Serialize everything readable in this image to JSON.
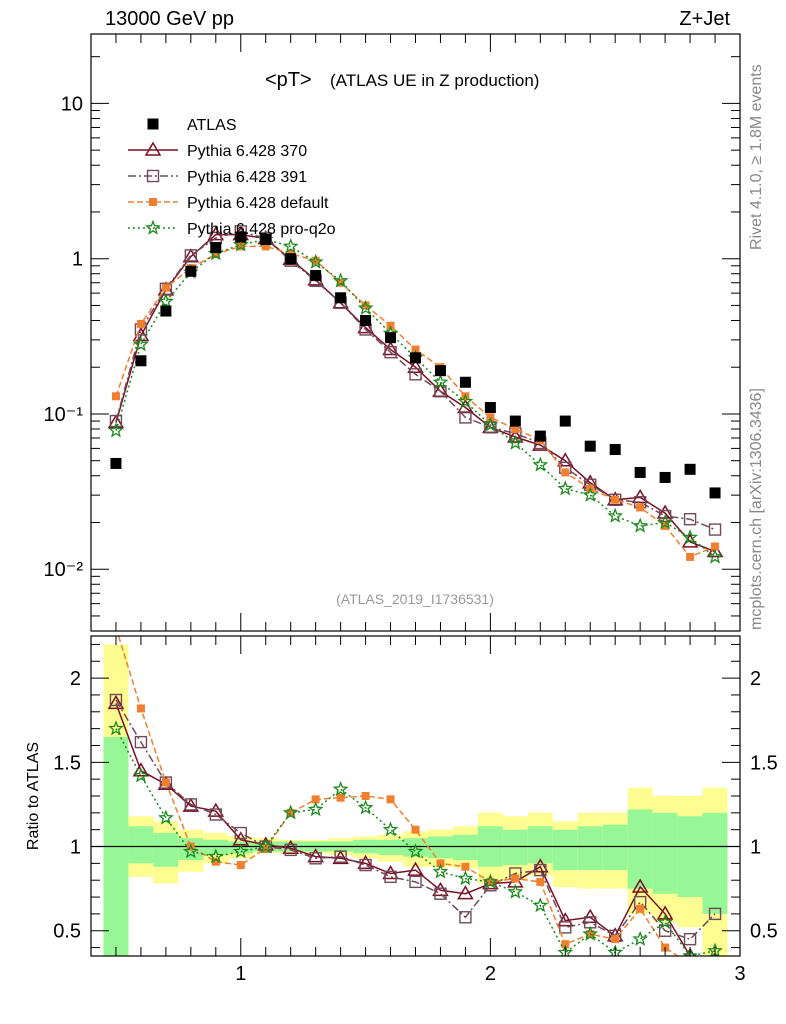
{
  "header": {
    "left": "13000 GeV pp",
    "right": "Z+Jet"
  },
  "side_labels": {
    "rivet": "Rivet 4.1.0, ≥ 1.8M events",
    "mcplots": "mcplots.cern.ch [arXiv:1306.3436]"
  },
  "chart_data": {
    "type": "scatter",
    "title": "<pT> (ATLAS UE in Z production)",
    "title_main": "<pT>",
    "title_sub": "(ATLAS UE in Z production)",
    "analysis_id": "(ATLAS_2019_I1736531)",
    "xlabel": "",
    "ylabel": "",
    "ratio_ylabel": "Ratio to ATLAS",
    "xlim": [
      0.4,
      3.0
    ],
    "ylim": [
      0.004,
      28
    ],
    "yscale": "log",
    "ratio_ylim": [
      0.35,
      2.25
    ],
    "x_tick_labels": [
      "1",
      "2",
      "3"
    ],
    "y_tick_labels": [
      "10",
      "1",
      "10⁻¹",
      "10⁻²"
    ],
    "ratio_tick_labels": [
      "2",
      "1.5",
      "1",
      "0.5"
    ],
    "x": [
      0.5,
      0.6,
      0.7,
      0.8,
      0.9,
      1.0,
      1.1,
      1.2,
      1.3,
      1.4,
      1.5,
      1.6,
      1.7,
      1.8,
      1.9,
      2.0,
      2.1,
      2.2,
      2.3,
      2.4,
      2.5,
      2.6,
      2.7,
      2.8,
      2.9
    ],
    "reference": {
      "name": "ATLAS",
      "color": "#000000",
      "values": [
        0.048,
        0.22,
        0.46,
        0.83,
        1.18,
        1.38,
        1.33,
        1.0,
        0.78,
        0.56,
        0.4,
        0.31,
        0.23,
        0.19,
        0.16,
        0.11,
        0.09,
        0.072,
        0.09,
        0.062,
        0.059,
        0.042,
        0.039,
        0.044,
        0.031
      ],
      "band_yellow": [
        [
          0.35,
          2.2
        ],
        [
          0.82,
          1.18
        ],
        [
          0.78,
          1.15
        ],
        [
          0.85,
          1.1
        ],
        [
          0.9,
          1.08
        ],
        [
          0.93,
          1.06
        ],
        [
          0.96,
          1.05
        ],
        [
          0.96,
          1.04
        ],
        [
          0.96,
          1.04
        ],
        [
          0.95,
          1.05
        ],
        [
          0.93,
          1.06
        ],
        [
          0.91,
          1.07
        ],
        [
          0.88,
          1.09
        ],
        [
          0.88,
          1.1
        ],
        [
          0.87,
          1.12
        ],
        [
          0.78,
          1.2
        ],
        [
          0.8,
          1.18
        ],
        [
          0.83,
          1.2
        ],
        [
          0.76,
          1.15
        ],
        [
          0.75,
          1.2
        ],
        [
          0.75,
          1.2
        ],
        [
          0.6,
          1.35
        ],
        [
          0.55,
          1.3
        ],
        [
          0.52,
          1.3
        ],
        [
          0.35,
          1.35
        ]
      ],
      "band_green": [
        [
          0.35,
          1.65
        ],
        [
          0.9,
          1.12
        ],
        [
          0.88,
          1.08
        ],
        [
          0.92,
          1.05
        ],
        [
          0.95,
          1.04
        ],
        [
          0.96,
          1.03
        ],
        [
          0.97,
          1.03
        ],
        [
          0.97,
          1.03
        ],
        [
          0.97,
          1.03
        ],
        [
          0.97,
          1.03
        ],
        [
          0.96,
          1.04
        ],
        [
          0.95,
          1.04
        ],
        [
          0.94,
          1.05
        ],
        [
          0.93,
          1.06
        ],
        [
          0.92,
          1.07
        ],
        [
          0.88,
          1.12
        ],
        [
          0.89,
          1.1
        ],
        [
          0.9,
          1.12
        ],
        [
          0.86,
          1.1
        ],
        [
          0.86,
          1.12
        ],
        [
          0.86,
          1.13
        ],
        [
          0.75,
          1.22
        ],
        [
          0.72,
          1.2
        ],
        [
          0.7,
          1.18
        ],
        [
          0.6,
          1.2
        ]
      ]
    },
    "series": [
      {
        "name": "Pythia 6.428 370",
        "color": "#7b0e22",
        "marker": "triangle",
        "dash": "",
        "values": [
          0.088,
          0.32,
          0.63,
          1.03,
          1.43,
          1.43,
          1.35,
          0.99,
          0.73,
          0.52,
          0.36,
          0.26,
          0.2,
          0.14,
          0.11,
          0.082,
          0.071,
          0.063,
          0.05,
          0.036,
          0.028,
          0.029,
          0.023,
          0.015,
          0.013
        ],
        "ratio": [
          1.85,
          1.45,
          1.37,
          1.24,
          1.21,
          1.04,
          1.01,
          0.99,
          0.94,
          0.93,
          0.9,
          0.84,
          0.86,
          0.74,
          0.72,
          0.78,
          0.79,
          0.88,
          0.56,
          0.58,
          0.47,
          0.76,
          0.6,
          0.35,
          0.3
        ]
      },
      {
        "name": "Pythia 6.428 391",
        "color": "#6e4a5a",
        "marker": "square-open",
        "dash": "8,3,2,3",
        "values": [
          0.09,
          0.35,
          0.64,
          1.05,
          1.36,
          1.5,
          1.35,
          0.97,
          0.72,
          0.52,
          0.35,
          0.25,
          0.18,
          0.14,
          0.095,
          0.082,
          0.075,
          0.065,
          0.045,
          0.035,
          0.028,
          0.027,
          0.022,
          0.021,
          0.018
        ],
        "ratio": [
          1.87,
          1.62,
          1.38,
          1.25,
          1.19,
          1.08,
          1.0,
          0.98,
          0.93,
          0.94,
          0.89,
          0.82,
          0.79,
          0.72,
          0.58,
          0.77,
          0.84,
          0.86,
          0.52,
          0.55,
          0.47,
          0.67,
          0.5,
          0.45,
          0.6
        ]
      },
      {
        "name": "Pythia 6.428 default",
        "color": "#f08030",
        "marker": "square-filled",
        "dash": "6,3",
        "values": [
          0.13,
          0.38,
          0.65,
          0.87,
          1.07,
          1.2,
          1.2,
          1.08,
          0.97,
          0.7,
          0.5,
          0.37,
          0.26,
          0.2,
          0.13,
          0.095,
          0.08,
          0.068,
          0.042,
          0.033,
          0.028,
          0.025,
          0.019,
          0.012,
          0.014
        ],
        "ratio": [
          2.3,
          1.82,
          1.38,
          1.0,
          0.91,
          0.89,
          0.99,
          1.2,
          1.28,
          1.29,
          1.3,
          1.28,
          1.1,
          0.9,
          0.88,
          0.79,
          0.81,
          0.79,
          0.42,
          0.48,
          0.45,
          0.63,
          0.4,
          0.3,
          0.3
        ]
      },
      {
        "name": "Pythia 6.428 pro-q2o",
        "color": "#1b8a1b",
        "marker": "star",
        "dash": "2,3",
        "values": [
          0.078,
          0.28,
          0.53,
          0.82,
          1.08,
          1.23,
          1.33,
          1.2,
          0.95,
          0.72,
          0.48,
          0.33,
          0.23,
          0.16,
          0.12,
          0.085,
          0.065,
          0.047,
          0.033,
          0.03,
          0.022,
          0.019,
          0.02,
          0.016,
          0.012
        ],
        "ratio": [
          1.7,
          1.42,
          1.17,
          0.97,
          0.94,
          0.97,
          1.0,
          1.2,
          1.22,
          1.34,
          1.23,
          1.1,
          0.97,
          0.85,
          0.81,
          0.79,
          0.73,
          0.65,
          0.37,
          0.48,
          0.37,
          0.45,
          0.55,
          0.35,
          0.38
        ]
      }
    ]
  }
}
